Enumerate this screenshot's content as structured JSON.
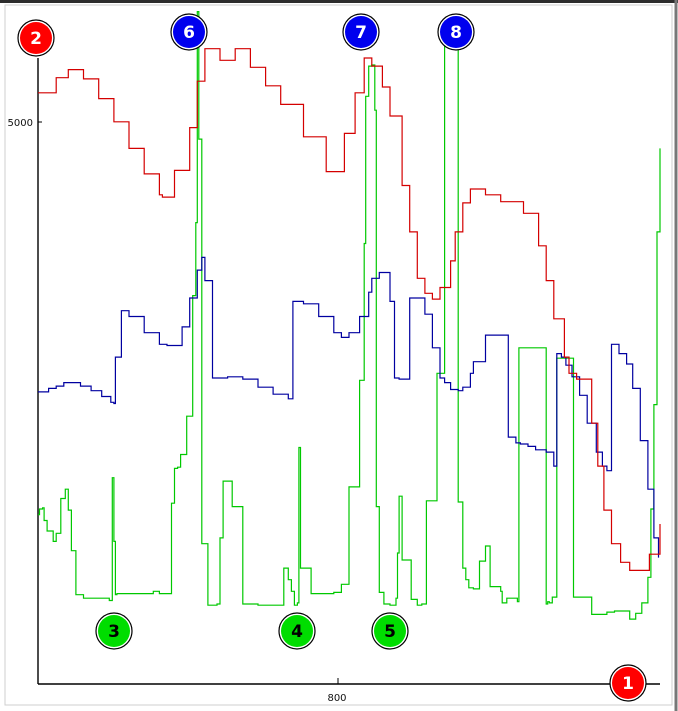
{
  "chart_data": {
    "type": "line",
    "title": "",
    "xlabel": "",
    "ylabel": "",
    "xlim": [
      600,
      1010
    ],
    "ylim": [
      0,
      5400
    ],
    "x_tick_labels": [
      "800"
    ],
    "y_tick_labels": [
      "5000"
    ],
    "grid": false,
    "series": [
      {
        "color": "#d40000",
        "x": [
          600,
          612,
          620,
          625,
          630,
          640,
          650,
          660,
          670,
          680,
          682,
          690,
          700,
          705,
          710,
          720,
          730,
          740,
          750,
          760,
          775,
          790,
          795,
          802,
          809,
          815,
          820,
          827,
          832,
          840,
          845,
          850,
          855,
          860,
          865,
          872,
          875,
          880,
          885,
          892,
          895,
          900,
          905,
          912,
          920,
          930,
          935,
          940,
          947,
          950,
          955,
          965,
          969,
          973,
          978,
          984,
          990,
          998,
          1003,
          1010
        ],
        "values": [
          5100,
          5230,
          5300,
          5300,
          5220,
          5050,
          4850,
          4620,
          4400,
          4220,
          4200,
          4430,
          4800,
          5200,
          5480,
          5380,
          5480,
          5320,
          5160,
          5000,
          4720,
          4420,
          4420,
          4750,
          5100,
          5400,
          5330,
          5150,
          4900,
          4300,
          3900,
          3500,
          3370,
          3320,
          3420,
          3650,
          3900,
          4150,
          4270,
          4270,
          4220,
          4220,
          4160,
          4160,
          4060,
          3780,
          3480,
          3150,
          2820,
          2680,
          2630,
          2250,
          1880,
          1500,
          1210,
          1050,
          980,
          980,
          1120,
          1380
        ]
      },
      {
        "color": "#0000a0",
        "x": [
          600,
          607,
          612,
          617,
          622,
          628,
          635,
          642,
          648,
          650,
          651,
          655,
          660,
          670,
          680,
          685,
          695,
          700,
          705,
          708,
          710,
          715,
          725,
          735,
          745,
          755,
          765,
          765,
          768,
          775,
          785,
          795,
          800,
          805,
          812,
          818,
          820,
          825,
          832,
          835,
          838,
          845,
          855,
          860,
          865,
          868,
          872,
          877,
          880,
          885,
          887,
          895,
          910,
          915,
          918,
          920,
          923,
          928,
          935,
          940,
          942,
          945,
          948,
          952,
          957,
          962,
          968,
          972,
          975,
          978,
          983,
          988,
          992,
          997,
          1002,
          1006,
          1009
        ],
        "values": [
          2520,
          2550,
          2570,
          2600,
          2600,
          2570,
          2530,
          2480,
          2430,
          2420,
          2820,
          3220,
          3170,
          3030,
          2930,
          2920,
          3080,
          3330,
          3570,
          3680,
          3480,
          2640,
          2650,
          2630,
          2560,
          2500,
          2470,
          2460,
          3300,
          3280,
          3170,
          3030,
          2990,
          3030,
          3170,
          3380,
          3500,
          3550,
          3300,
          2640,
          2630,
          3330,
          3190,
          2900,
          2640,
          2600,
          2540,
          2530,
          2560,
          2680,
          2780,
          3010,
          2130,
          2080,
          2070,
          2070,
          2050,
          2020,
          2000,
          1880,
          2850,
          2820,
          2750,
          2650,
          2490,
          2250,
          2000,
          1880,
          1840,
          2930,
          2850,
          2760,
          2550,
          2100,
          1680,
          1260,
          1090
        ]
      },
      {
        "color": "#00c800",
        "x": [
          600,
          601,
          603,
          604,
          606,
          610,
          612,
          615,
          618,
          620,
          622,
          625,
          630,
          647,
          648,
          649,
          650,
          651,
          652,
          670,
          676,
          680,
          688,
          690,
          692,
          694,
          698,
          702,
          704,
          705,
          706,
          708,
          712,
          718,
          720,
          722,
          728,
          735,
          745,
          760,
          762,
          765,
          767,
          769,
          771,
          772,
          773,
          780,
          795,
          800,
          805,
          812,
          815,
          816,
          818,
          820,
          822,
          823,
          825,
          828,
          832,
          836,
          837,
          838,
          840,
          846,
          850,
          853,
          856,
          863,
          868,
          873,
          877,
          880,
          882,
          884,
          887,
          891,
          895,
          898,
          905,
          906,
          909,
          916,
          917,
          935,
          936,
          937,
          939,
          942,
          953,
          965,
          975,
          980,
          990,
          994,
          998,
          1002,
          1004,
          1006,
          1008,
          1010
        ],
        "values": [
          1460,
          1510,
          1520,
          1410,
          1320,
          1230,
          1300,
          1600,
          1680,
          1500,
          1150,
          770,
          740,
          720,
          720,
          1780,
          1230,
          770,
          780,
          780,
          800,
          780,
          1560,
          1860,
          1870,
          1980,
          2310,
          3350,
          3980,
          5800,
          4700,
          1210,
          680,
          690,
          1260,
          1750,
          1530,
          690,
          680,
          680,
          1000,
          900,
          800,
          680,
          700,
          2040,
          1000,
          780,
          790,
          860,
          1700,
          2620,
          3800,
          5070,
          5330,
          5340,
          4950,
          1530,
          790,
          690,
          680,
          740,
          1130,
          1620,
          1070,
          730,
          680,
          690,
          1580,
          2680,
          5740,
          5570,
          1570,
          1000,
          900,
          830,
          820,
          1060,
          1190,
          840,
          800,
          700,
          740,
          710,
          2900,
          690,
          710,
          700,
          750,
          2810,
          750,
          600,
          620,
          630,
          560,
          610,
          700,
          920,
          1510,
          2410,
          3900,
          4620
        ]
      }
    ],
    "markers": [
      {
        "label": "1",
        "color": "#ff0000"
      },
      {
        "label": "2",
        "color": "#ff0000"
      },
      {
        "label": "3",
        "color": "#00dd00"
      },
      {
        "label": "4",
        "color": "#00dd00"
      },
      {
        "label": "5",
        "color": "#00dd00"
      },
      {
        "label": "6",
        "color": "#0000ee"
      },
      {
        "label": "7",
        "color": "#0000ee"
      },
      {
        "label": "8",
        "color": "#0000ee"
      }
    ]
  }
}
